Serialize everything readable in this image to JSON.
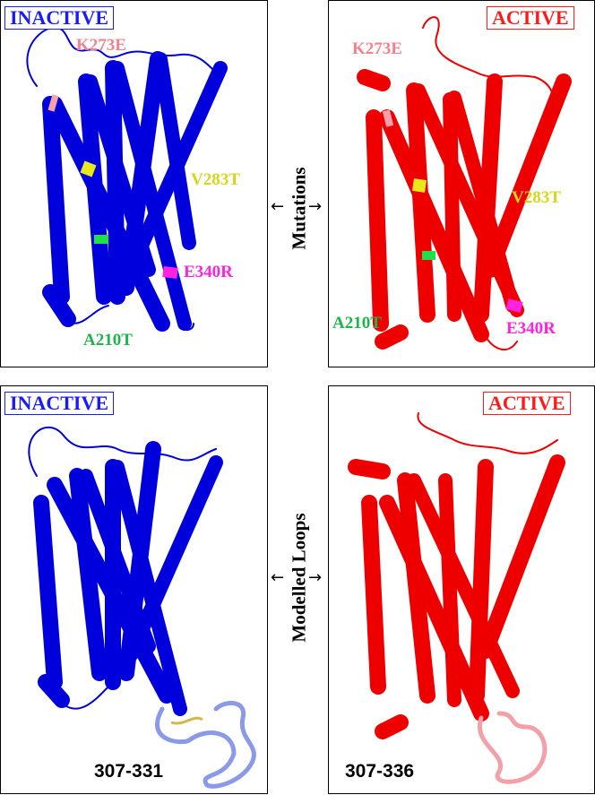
{
  "panels": {
    "top_left": {
      "state": "INACTIVE",
      "labels": {
        "k273e": "K273E",
        "v283t": "V283T",
        "e340r": "E340R",
        "a210t": "A210T"
      }
    },
    "top_right": {
      "state": "ACTIVE",
      "labels": {
        "k273e": "K273E",
        "v283t": "V283T",
        "e340r": "E340R",
        "a210t": "A210T"
      }
    },
    "bottom_left": {
      "state": "INACTIVE",
      "range": "307-331"
    },
    "bottom_right": {
      "state": "ACTIVE",
      "range": "307-336"
    }
  },
  "middle": {
    "top": "Mutations",
    "bottom": "Modelled Loops"
  },
  "colors": {
    "inactive": "#1a1aff",
    "active": "#ff1a1a",
    "k273e": "#f7808e",
    "v283t": "#d6d61a",
    "e340r": "#ff22e0",
    "a210t": "#1fb54a"
  }
}
